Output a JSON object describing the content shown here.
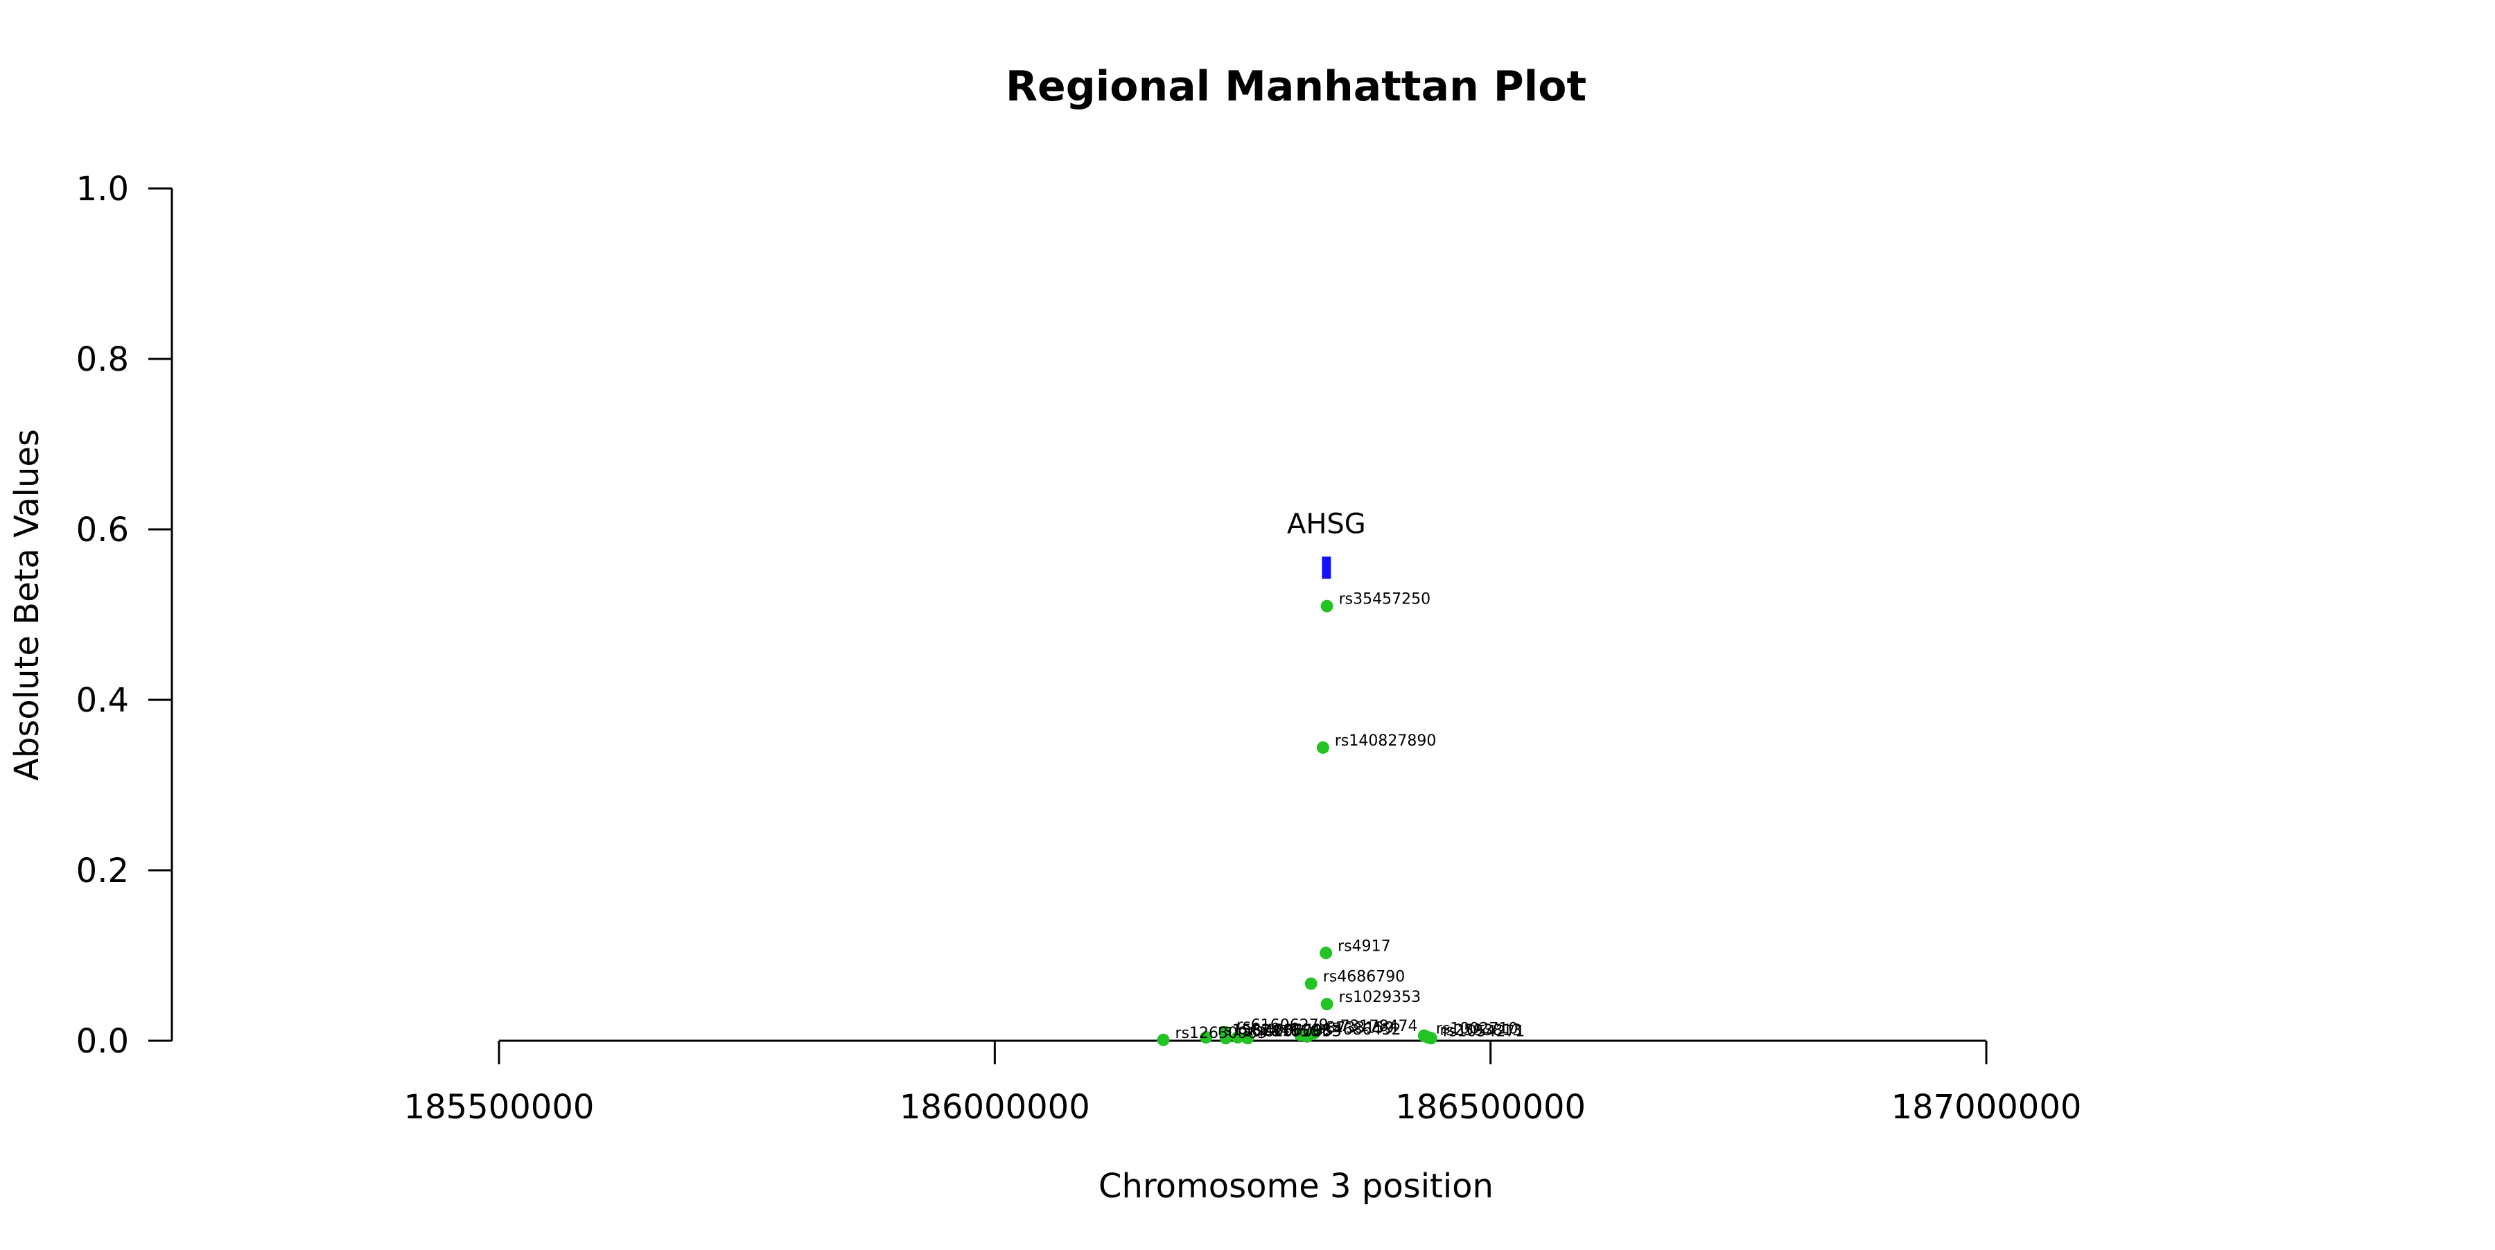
{
  "chart_data": {
    "type": "scatter",
    "title": "Regional Manhattan Plot",
    "xlabel": "Chromosome 3 position",
    "ylabel": "Absolute Beta Values",
    "xlim": [
      185500000,
      187000000
    ],
    "ylim": [
      0,
      1.0
    ],
    "x_ticks": [
      185500000,
      186000000,
      186500000,
      187000000
    ],
    "x_tick_labels": [
      "185500000",
      "186000000",
      "186500000",
      "187000000"
    ],
    "y_ticks": [
      0.0,
      0.2,
      0.4,
      0.6,
      0.8,
      1.0
    ],
    "y_tick_labels": [
      "0.0",
      "0.2",
      "0.4",
      "0.6",
      "0.8",
      "1.0"
    ],
    "grid": false,
    "point_color": "#22c322",
    "gene_color": "#1010ff",
    "genes": [
      {
        "name": "AHSG",
        "start": 186330000,
        "end": 186339000,
        "y": 0.555
      }
    ],
    "points": [
      {
        "label": "rs35457250",
        "x": 186335000,
        "y": 0.51
      },
      {
        "label": "rs140827890",
        "x": 186331000,
        "y": 0.344
      },
      {
        "label": "rs4917",
        "x": 186334000,
        "y": 0.103
      },
      {
        "label": "rs4686790",
        "x": 186319000,
        "y": 0.067
      },
      {
        "label": "rs1029353",
        "x": 186335000,
        "y": 0.043
      },
      {
        "label": "rs61606279",
        "x": 186232000,
        "y": 0.01
      },
      {
        "label": "rs73178474",
        "x": 186322000,
        "y": 0.009
      },
      {
        "label": "rs3733159",
        "x": 186308000,
        "y": 0.007
      },
      {
        "label": "rs4686452",
        "x": 186315000,
        "y": 0.005
      },
      {
        "label": "rs1562441",
        "x": 186213000,
        "y": 0.004
      },
      {
        "label": "rs6787650",
        "x": 186233000,
        "y": 0.003
      },
      {
        "label": "rs4686798",
        "x": 186245000,
        "y": 0.004
      },
      {
        "label": "rs2070633",
        "x": 186255000,
        "y": 0.003
      },
      {
        "label": "rs12630963",
        "x": 186170000,
        "y": 0.001
      },
      {
        "label": "rs1002710",
        "x": 186433000,
        "y": 0.006
      },
      {
        "label": "rs2593813",
        "x": 186437000,
        "y": 0.004
      },
      {
        "label": "rs1054271",
        "x": 186440000,
        "y": 0.003
      }
    ]
  }
}
